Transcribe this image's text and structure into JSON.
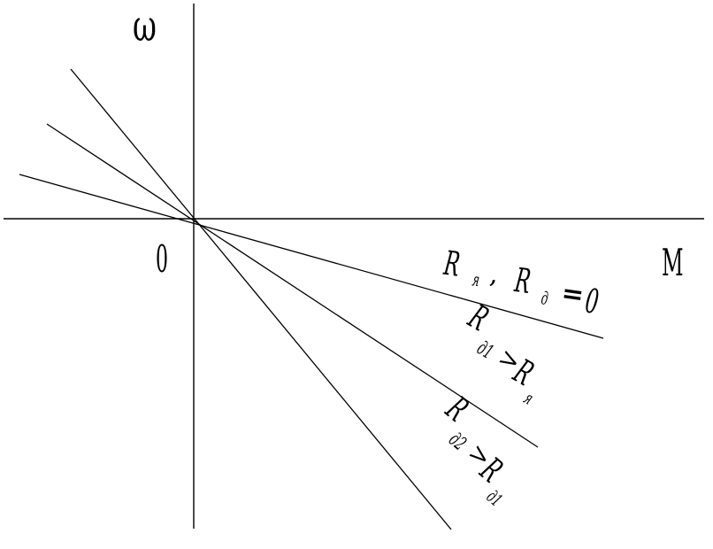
{
  "axes": {
    "y_label": "ω",
    "x_label": "M",
    "origin_label": "0"
  },
  "curves": [
    {
      "id": "natural",
      "label": {
        "r1": "R",
        "s1": "я",
        "sep": ",",
        "r2": "R",
        "s2": "д",
        "eq": "=",
        "rhs": "0"
      }
    },
    {
      "id": "rd1",
      "label": {
        "r1": "R",
        "s1": "д1",
        "op": ">",
        "r2": "R",
        "s2": "я"
      }
    },
    {
      "id": "rd2",
      "label": {
        "r1": "R",
        "s1": "д2",
        "op": ">",
        "r2": "R",
        "s2": "д1"
      }
    }
  ]
}
